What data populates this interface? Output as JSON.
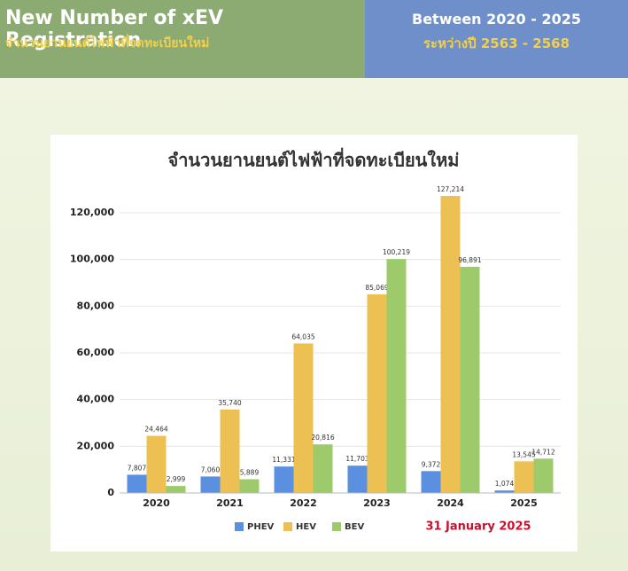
{
  "header": {
    "title": "New Number of xEV Registration",
    "subtitle": "จำนวนยานยนต์ไฟฟ้าที่จดทะเบียนใหม่",
    "period": "Between 2020 - 2025",
    "period_thai": "ระหว่างปี 2563 - 2568"
  },
  "chart_data": {
    "type": "bar",
    "title": "จำนวนยานยนต์ไฟฟ้าที่จดทะเบียนใหม่",
    "categories": [
      "2020",
      "2021",
      "2022",
      "2023",
      "2024",
      "2025"
    ],
    "series": [
      {
        "name": "PHEV",
        "color": "#5b8fe0",
        "values": [
          7807,
          7060,
          11331,
          11703,
          9372,
          1074
        ],
        "value_labels": [
          "7,807",
          "7,060",
          "11,331",
          "11,703",
          "9,372",
          "1,074"
        ]
      },
      {
        "name": "HEV",
        "color": "#ecc052",
        "values": [
          24464,
          35740,
          64035,
          85069,
          127214,
          13545
        ],
        "value_labels": [
          "24,464",
          "35,740",
          "64,035",
          "85,069",
          "127,214",
          "13,545"
        ]
      },
      {
        "name": "BEV",
        "color": "#9dcb6c",
        "values": [
          2999,
          5889,
          20816,
          100219,
          96891,
          14712
        ],
        "value_labels": [
          "2,999",
          "5,889",
          "20,816",
          "100,219",
          "96,891",
          "14,712"
        ]
      }
    ],
    "ylim": [
      0,
      130000
    ],
    "yticks": [
      0,
      {
        "value": 20000,
        "label": "20,000"
      },
      {
        "value": 40000,
        "label": "40,000"
      },
      {
        "value": 60000,
        "label": "60,000"
      },
      {
        "value": 80000,
        "label": "80,000"
      },
      {
        "value": 100000,
        "label": "100,000"
      },
      {
        "value": 120000,
        "label": "120,000"
      }
    ],
    "grid": true,
    "legend": "bottom",
    "annotation": "31 January 2025"
  }
}
